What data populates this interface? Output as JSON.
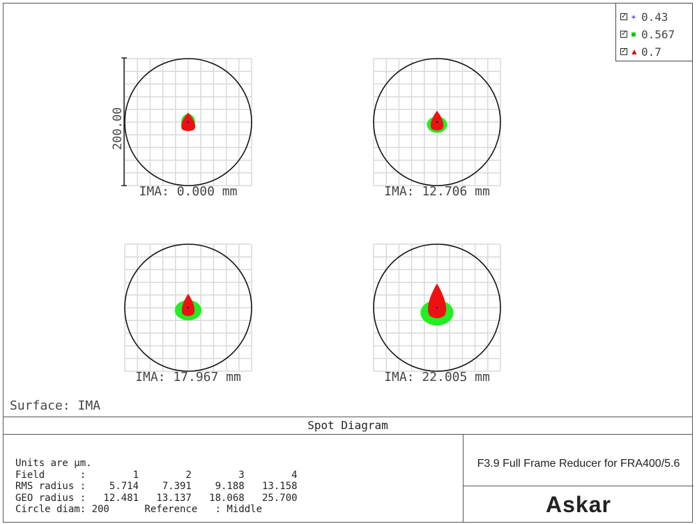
{
  "legend": {
    "items": [
      {
        "label": "0.43",
        "marker": "+",
        "color": "#0000cc"
      },
      {
        "label": "0.567",
        "marker": "■",
        "color": "#00cc00"
      },
      {
        "label": "0.7",
        "marker": "▲",
        "color": "#dd0000"
      }
    ]
  },
  "surface_label": "Surface: IMA",
  "diagram_title": "Spot Diagram",
  "scale_bar_label": "200.00",
  "stats": {
    "units": "Units are µm.",
    "field_label": "Field",
    "fields": [
      "1",
      "2",
      "3",
      "4"
    ],
    "rms_label": "RMS radius",
    "rms": [
      "5.714",
      "7.391",
      "9.188",
      "13.158"
    ],
    "geo_label": "GEO radius",
    "geo": [
      "12.481",
      "13.137",
      "18.068",
      "25.700"
    ],
    "circle_label": "Circle diam: 200",
    "reference_label": "Reference",
    "reference_value": ": Middle"
  },
  "description": "F3.9 Full Frame Reducer for FRA400/5.6",
  "logo_text": "Askar",
  "chart_data": {
    "type": "scatter",
    "title": "Spot Diagram",
    "units": "µm",
    "circle_diameter": 200,
    "wavelengths": [
      "0.43",
      "0.567",
      "0.7"
    ],
    "fields": [
      {
        "label": "IMA: 0.000 mm",
        "ima_mm": 0.0,
        "rms_radius": 5.714,
        "geo_radius": 12.481,
        "spot": {
          "green_w": 0.11,
          "green_h": 0.13,
          "red_w": 0.13,
          "red_h": 0.15,
          "red_offset": 0.0,
          "green_offset": 0.0
        }
      },
      {
        "label": "IMA: 12.706 mm",
        "ima_mm": 12.706,
        "rms_radius": 7.391,
        "geo_radius": 13.137,
        "spot": {
          "green_w": 0.16,
          "green_h": 0.13,
          "red_w": 0.12,
          "red_h": 0.16,
          "red_offset": -0.01,
          "green_offset": 0.02
        }
      },
      {
        "label": "IMA: 17.967 mm",
        "ima_mm": 17.967,
        "rms_radius": 9.188,
        "geo_radius": 18.068,
        "spot": {
          "green_w": 0.21,
          "green_h": 0.16,
          "red_w": 0.12,
          "red_h": 0.18,
          "red_offset": -0.02,
          "green_offset": 0.02
        }
      },
      {
        "label": "IMA: 22.005 mm",
        "ima_mm": 22.005,
        "rms_radius": 13.158,
        "geo_radius": 25.7,
        "spot": {
          "green_w": 0.26,
          "green_h": 0.2,
          "red_w": 0.17,
          "red_h": 0.28,
          "red_offset": -0.05,
          "green_offset": 0.04
        }
      }
    ]
  }
}
